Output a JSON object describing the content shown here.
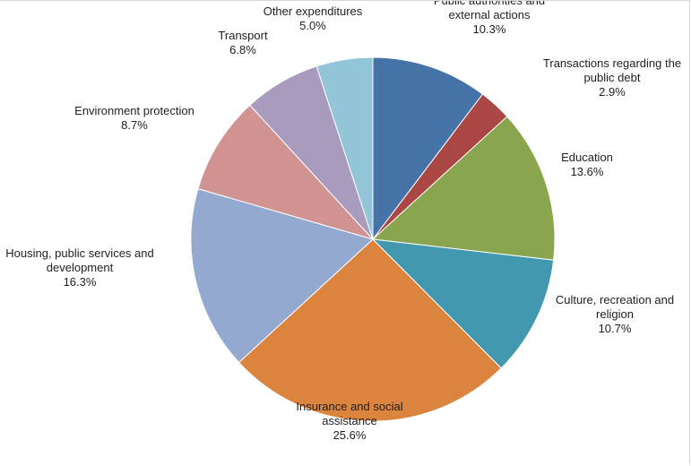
{
  "chart_data": {
    "type": "pie",
    "title": "",
    "legend": "none",
    "start_angle_deg": 0,
    "direction": "clockwise",
    "slices": [
      {
        "label": [
          "Public authorities and",
          "external actions"
        ],
        "value_label": "10.3%",
        "value": 10.3,
        "color": "#4572A7"
      },
      {
        "label": [
          "Transactions regarding the",
          "public debt"
        ],
        "value_label": "2.9%",
        "value": 2.9,
        "color": "#AA4643"
      },
      {
        "label": [
          "Education"
        ],
        "value_label": "13.6%",
        "value": 13.6,
        "color": "#89A54E"
      },
      {
        "label": [
          "Culture, recreation and",
          "religion"
        ],
        "value_label": "10.7%",
        "value": 10.7,
        "color": "#4198AF"
      },
      {
        "label": [
          "Insurance and social",
          "assistance"
        ],
        "value_label": "25.6%",
        "value": 25.6,
        "color": "#DB843D"
      },
      {
        "label": [
          "Housing, public services and",
          "development"
        ],
        "value_label": "16.3%",
        "value": 16.3,
        "color": "#93A9CF"
      },
      {
        "label": [
          "Environment protection"
        ],
        "value_label": "8.7%",
        "value": 8.7,
        "color": "#D19392"
      },
      {
        "label": [
          "Transport"
        ],
        "value_label": "6.8%",
        "value": 6.8,
        "color": "#A99BBD"
      },
      {
        "label": [
          "Other expenditures"
        ],
        "value_label": "5.0%",
        "value": 5.0,
        "color": "#92C5D7"
      }
    ]
  }
}
